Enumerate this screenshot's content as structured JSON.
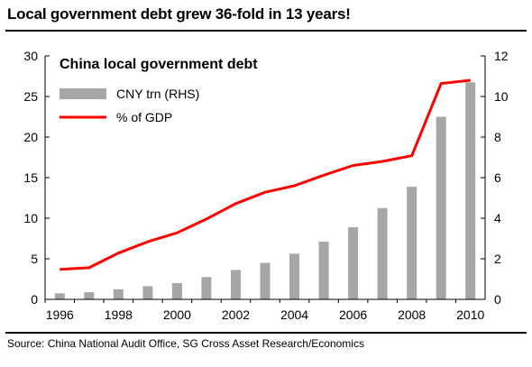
{
  "headline": "Local government debt grew 36-fold in 13 years!",
  "source": "Source: China National Audit Office, SG Cross Asset Research/Economics",
  "chart_data": {
    "type": "bar",
    "title": "China local government debt",
    "xlabel": "",
    "ylabel_left": "",
    "ylabel_right": "",
    "x": [
      1996,
      1997,
      1998,
      1999,
      2000,
      2001,
      2002,
      2003,
      2004,
      2005,
      2006,
      2007,
      2008,
      2009,
      2010
    ],
    "x_tick_labels": [
      "1996",
      "1998",
      "2000",
      "2002",
      "2004",
      "2006",
      "2008",
      "2010"
    ],
    "x_ticks": [
      1996,
      1998,
      2000,
      2002,
      2004,
      2006,
      2008,
      2010
    ],
    "ylim_left": [
      0,
      30
    ],
    "yticks_left": [
      "0",
      "5",
      "10",
      "15",
      "20",
      "25",
      "30"
    ],
    "ylim_right": [
      0,
      12
    ],
    "yticks_right": [
      "0",
      "2",
      "4",
      "6",
      "8",
      "10",
      "12"
    ],
    "grid": false,
    "legend_placement": "top-left",
    "series": [
      {
        "name": "CNY trn (RHS)",
        "type": "bar",
        "axis": "right",
        "color": "#a6a6a6",
        "values": [
          0.3,
          0.35,
          0.5,
          0.65,
          0.8,
          1.1,
          1.45,
          1.8,
          2.25,
          2.85,
          3.55,
          4.5,
          5.55,
          9.0,
          10.7
        ]
      },
      {
        "name": "% of GDP",
        "type": "line",
        "axis": "left",
        "color": "#ff0000",
        "values": [
          3.7,
          3.9,
          5.7,
          7.1,
          8.2,
          9.9,
          11.8,
          13.2,
          14.0,
          15.3,
          16.5,
          17.0,
          17.7,
          26.6,
          27.0
        ]
      }
    ]
  }
}
